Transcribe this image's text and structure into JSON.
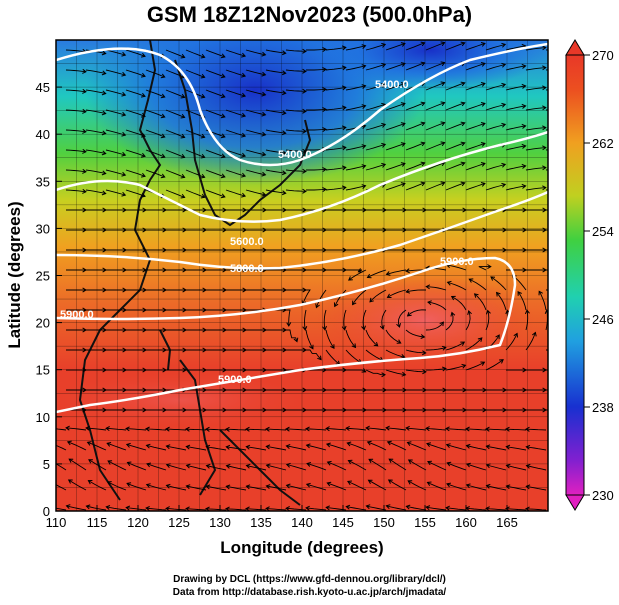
{
  "title": "GSM 18Z12Nov2023 (500.0hPa)",
  "map": {
    "xlabel": "Longitude (degrees)",
    "ylabel": "Latitude  (degrees)",
    "xlim": [
      110,
      170
    ],
    "ylim": [
      0,
      50
    ],
    "x_ticks": [
      "110",
      "115",
      "120",
      "125",
      "130",
      "135",
      "140",
      "145",
      "150",
      "155",
      "160",
      "165"
    ],
    "y_ticks": [
      "0",
      "5",
      "10",
      "15",
      "20",
      "25",
      "30",
      "35",
      "40",
      "45"
    ],
    "grid": true,
    "contour_level_labels": [
      "5400.0",
      "5600.0",
      "5800.0",
      "5900.0"
    ]
  },
  "colorbar": {
    "ticks": [
      "230",
      "238",
      "246",
      "254",
      "262",
      "270"
    ],
    "range": [
      230,
      270
    ]
  },
  "footer": {
    "line1": "Drawing by DCL (https://www.gfd-dennou.org/library/dcl/)",
    "line2": "Data from http://database.rish.kyoto-u.ac.jp/arch/jmadata/"
  },
  "colors": {
    "high_temp": "#e8402a",
    "mid_temp": "#f0a020",
    "low_temp": "#1e52e0",
    "contour": "#ffffff",
    "streamline": "#000000"
  }
}
